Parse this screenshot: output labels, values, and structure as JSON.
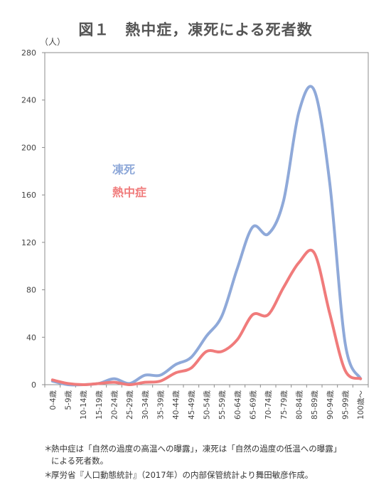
{
  "chart_data": {
    "type": "line",
    "title": "図１　熱中症，凍死による死者数",
    "ylabel": "（人）",
    "xlabel": "",
    "ylim": [
      0,
      280
    ],
    "yticks": [
      0,
      40,
      80,
      120,
      160,
      200,
      240,
      280
    ],
    "grid": false,
    "legend": "inline-left",
    "categories": [
      "0-4歳",
      "5-9歳",
      "10-14歳",
      "15-19歳",
      "20-24歳",
      "25-29歳",
      "30-34歳",
      "35-39歳",
      "40-44歳",
      "45-49歳",
      "50-54歳",
      "55-59歳",
      "60-64歳",
      "65-69歳",
      "70-74歳",
      "75-79歳",
      "80-84歳",
      "85-89歳",
      "90-94歳",
      "95-99歳",
      "100歳～"
    ],
    "series": [
      {
        "name": "凍死",
        "color": "#8fa9d9",
        "values": [
          3,
          0,
          0,
          1,
          5,
          1,
          8,
          8,
          17,
          23,
          41,
          58,
          98,
          133,
          127,
          155,
          230,
          248,
          170,
          35,
          5
        ]
      },
      {
        "name": "熱中症",
        "color": "#f07b7b",
        "values": [
          4,
          1,
          0,
          1,
          2,
          0,
          2,
          3,
          10,
          14,
          28,
          28,
          38,
          59,
          59,
          82,
          103,
          111,
          60,
          12,
          5
        ]
      }
    ]
  },
  "notes": [
    "熱中症は「自然の過度の高温への曝露」，凍死は「自然の過度の低温への曝露」",
    "による死者数。",
    "厚労省『人口動態統計』（2017年）の内部保管統計より舞田敏彦作成。"
  ],
  "note_marker": "＊"
}
